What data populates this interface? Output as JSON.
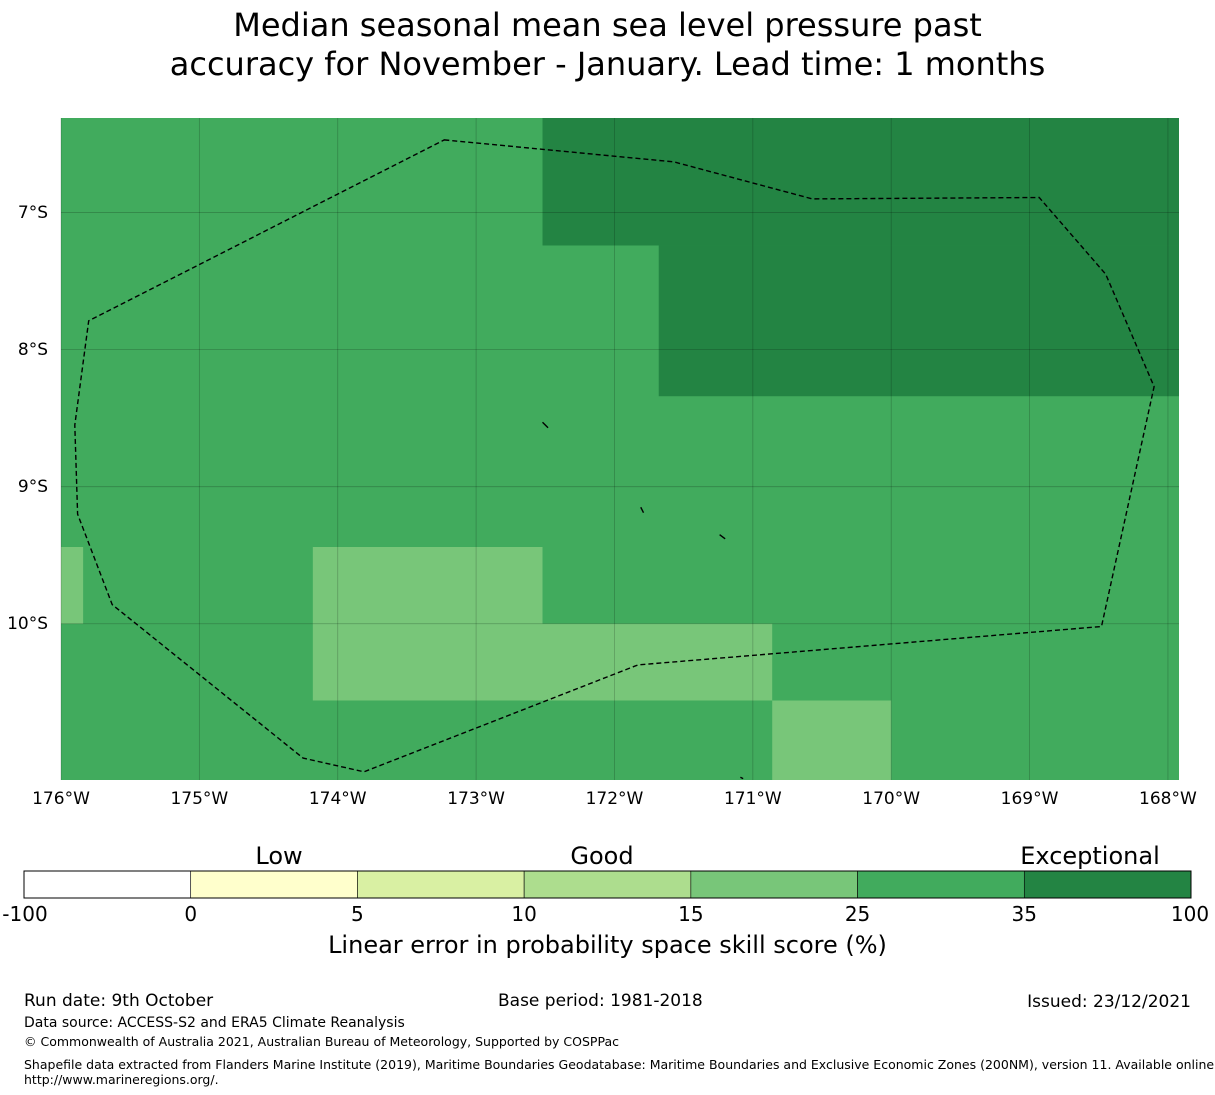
{
  "title": {
    "line1": "Median seasonal mean sea level pressure past",
    "line2": "accuracy for November - January. Lead time: 1 months"
  },
  "map": {
    "lon_range": [
      -176.0,
      -167.92
    ],
    "lat_range": [
      -11.14,
      -6.31
    ],
    "lon_ticks": [
      {
        "value": -176,
        "label": "176°W"
      },
      {
        "value": -175,
        "label": "175°W"
      },
      {
        "value": -174,
        "label": "174°W"
      },
      {
        "value": -173,
        "label": "173°W"
      },
      {
        "value": -172,
        "label": "172°W"
      },
      {
        "value": -171,
        "label": "171°W"
      },
      {
        "value": -170,
        "label": "170°W"
      },
      {
        "value": -169,
        "label": "169°W"
      },
      {
        "value": -168,
        "label": "168°W"
      }
    ],
    "lat_ticks": [
      {
        "value": -7,
        "label": "7°S"
      },
      {
        "value": -8,
        "label": "8°S"
      },
      {
        "value": -9,
        "label": "9°S"
      },
      {
        "value": -10,
        "label": "10°S"
      }
    ],
    "base_category": "25-35",
    "cells": [
      {
        "lon": [
          -172.52,
          -167.92
        ],
        "lat": [
          -7.24,
          -6.31
        ],
        "category": "35-100"
      },
      {
        "lon": [
          -171.68,
          -167.92
        ],
        "lat": [
          -8.34,
          -7.24
        ],
        "category": "35-100"
      },
      {
        "lon": [
          -176.0,
          -175.84
        ],
        "lat": [
          -10.0,
          -9.44
        ],
        "category": "15-25"
      },
      {
        "lon": [
          -174.18,
          -172.52
        ],
        "lat": [
          -10.0,
          -9.44
        ],
        "category": "15-25"
      },
      {
        "lon": [
          -174.18,
          -170.86
        ],
        "lat": [
          -10.56,
          -10.0
        ],
        "category": "15-25"
      },
      {
        "lon": [
          -170.86,
          -170.0
        ],
        "lat": [
          -11.14,
          -10.56
        ],
        "category": "15-25"
      }
    ],
    "eez_boundary": [
      [
        -173.23,
        -6.47
      ],
      [
        -171.57,
        -6.63
      ],
      [
        -170.57,
        -6.9
      ],
      [
        -168.93,
        -6.89
      ],
      [
        -168.45,
        -7.45
      ],
      [
        -168.1,
        -8.27
      ],
      [
        -168.48,
        -10.02
      ],
      [
        -171.83,
        -10.3
      ],
      [
        -173.81,
        -11.08
      ],
      [
        -174.25,
        -10.98
      ],
      [
        -175.63,
        -9.86
      ],
      [
        -175.88,
        -9.2
      ],
      [
        -175.9,
        -8.55
      ],
      [
        -175.8,
        -7.79
      ]
    ],
    "islands": [
      [
        [
          -172.52,
          -8.53
        ],
        [
          -172.48,
          -8.57
        ]
      ],
      [
        [
          -171.81,
          -9.15
        ],
        [
          -171.79,
          -9.19
        ]
      ],
      [
        [
          -171.24,
          -9.35
        ],
        [
          -171.2,
          -9.38
        ]
      ],
      [
        [
          -171.09,
          -11.12
        ],
        [
          -171.07,
          -11.13
        ]
      ]
    ]
  },
  "colorbar": {
    "categories": [
      {
        "name": "-100-0",
        "color": "#ffffff"
      },
      {
        "name": "0-5",
        "color": "#ffffcc"
      },
      {
        "name": "5-10",
        "color": "#d9f0a3"
      },
      {
        "name": "10-15",
        "color": "#addd8e"
      },
      {
        "name": "15-25",
        "color": "#78c679"
      },
      {
        "name": "25-35",
        "color": "#41ab5d"
      },
      {
        "name": "35-100",
        "color": "#238443"
      }
    ],
    "ticks": [
      "-100",
      "0",
      "5",
      "10",
      "15",
      "25",
      "35",
      "100"
    ],
    "labels": {
      "low": "Low",
      "good": "Good",
      "exceptional": "Exceptional"
    },
    "title": "Linear error in probability space skill score (%)"
  },
  "footer": {
    "run_date": "Run date: 9th October",
    "base_period": "Base period: 1981-2018",
    "issued": "Issued: 23/12/2021",
    "data_source": "Data source: ACCESS-S2 and ERA5 Climate Reanalysis",
    "copyright": "© Commonwealth of Australia 2021, Australian Bureau of Meteorology, Supported by COSPPac",
    "shapefile_line1": "Shapefile data extracted from Flanders Marine Institute (2019), Maritime Boundaries Geodatabase: Maritime Boundaries and Exclusive Economic Zones (200NM), version 11. Available online at",
    "shapefile_line2": "http://www.marineregions.org/."
  }
}
